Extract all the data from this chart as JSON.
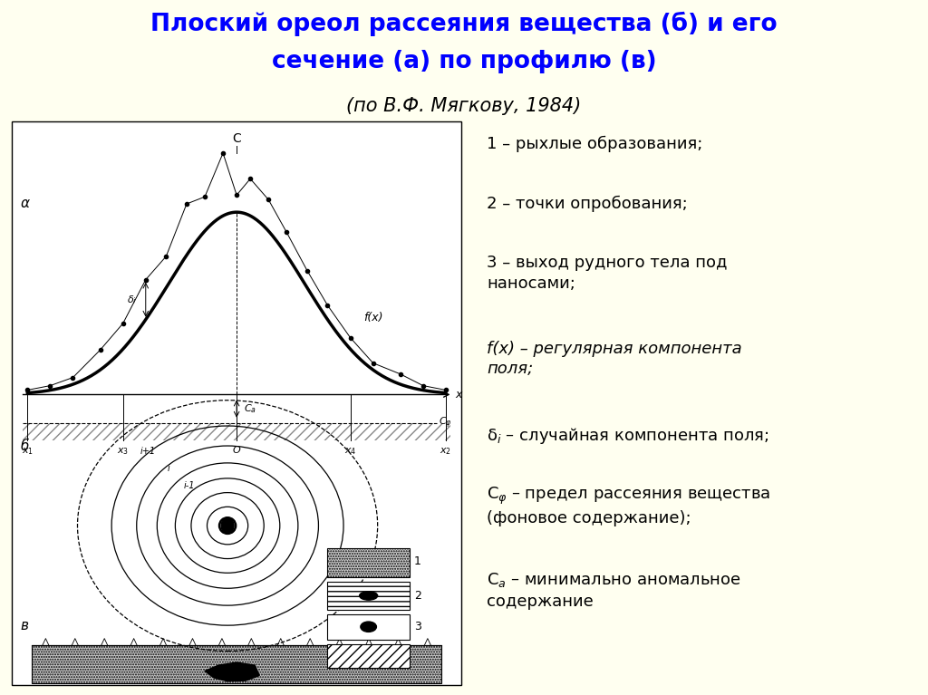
{
  "title_line1": "Плоский ореол рассеяния вещества (б) и его",
  "title_line2": "сечение (а) по профилю (в)",
  "title_line3": "(по В.Ф. Мягкову, 1984)",
  "bg_color": "#FFFFF0",
  "title_color": "#0000FF",
  "subtitle_color": "#000000"
}
